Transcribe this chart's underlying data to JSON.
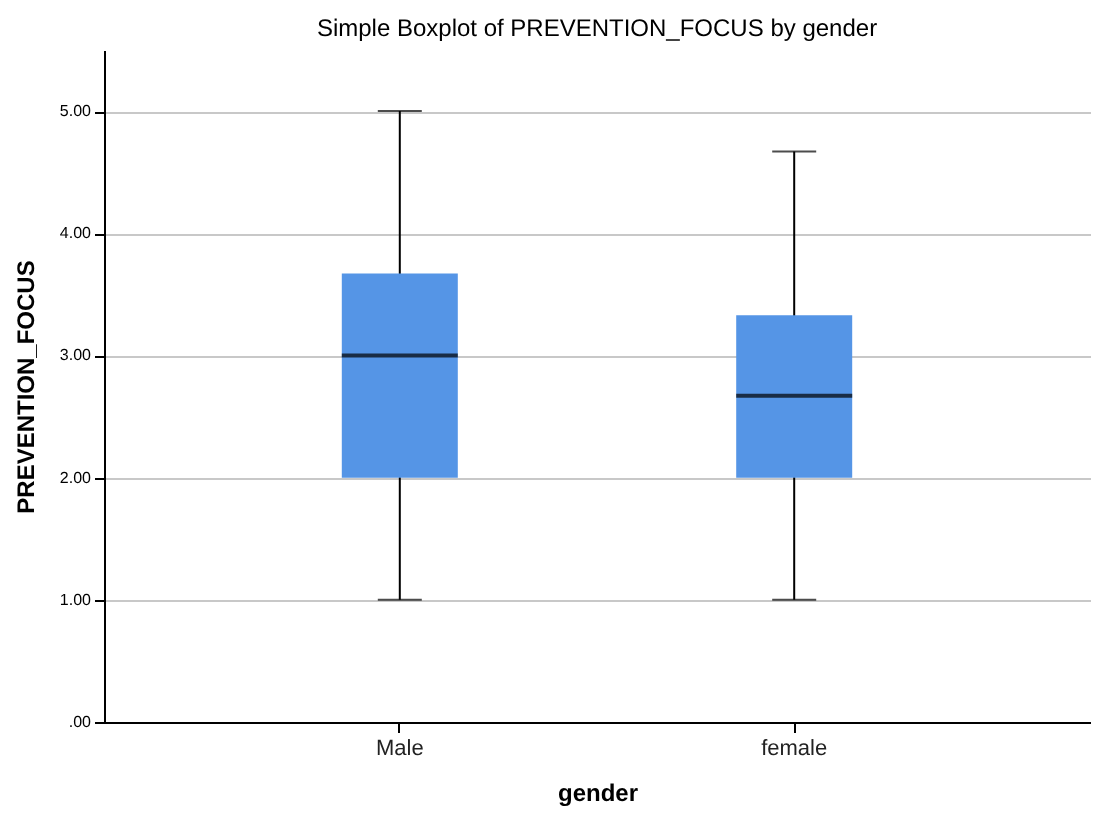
{
  "chart_data": {
    "type": "box",
    "title": "Simple Boxplot of PREVENTION_FOCUS by gender",
    "xlabel": "gender",
    "ylabel": "PREVENTION_FOCUS",
    "categories": [
      "Male",
      "female"
    ],
    "boxes": [
      {
        "low": 1,
        "q1": 2,
        "median": 3,
        "q3": 3.67,
        "high": 5
      },
      {
        "low": 1,
        "q1": 2,
        "median": 2.67,
        "q3": 3.33,
        "high": 4.67
      }
    ],
    "color": "#5595e6",
    "ylim": [
      0,
      5.5
    ],
    "yticks": [
      {
        "value": 0,
        "label": ".00"
      },
      {
        "value": 1,
        "label": "1.00"
      },
      {
        "value": 2,
        "label": "2.00"
      },
      {
        "value": 3,
        "label": "3.00"
      },
      {
        "value": 4,
        "label": "4.00"
      },
      {
        "value": 5,
        "label": "5.00"
      }
    ],
    "grid": "y"
  }
}
